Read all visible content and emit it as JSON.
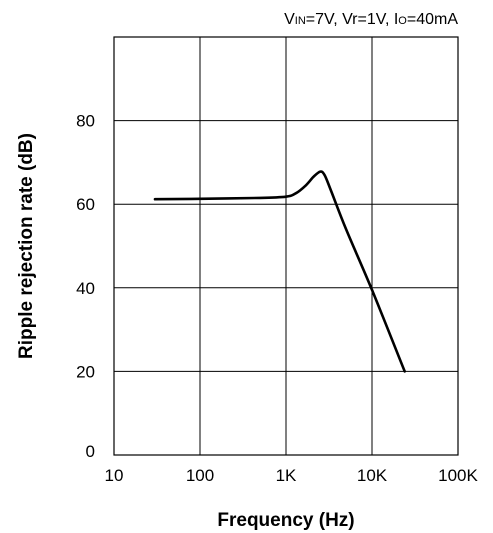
{
  "chart_data": {
    "type": "line",
    "annotation": {
      "v_label": "V",
      "v_sub": "IN",
      "v_rest": "=7V, Vr=1V, I",
      "i_sub": "O",
      "i_rest": "=40mA"
    },
    "xlabel": "Frequency (Hz)",
    "ylabel": "Ripple rejection rate (dB)",
    "x_scale": "log",
    "xlim": [
      10,
      100000
    ],
    "ylim": [
      0,
      100
    ],
    "x_ticks": [
      10,
      100,
      1000,
      10000,
      100000
    ],
    "x_tick_labels": [
      "10",
      "100",
      "1K",
      "10K",
      "100K"
    ],
    "y_ticks": [
      0,
      20,
      40,
      60,
      80
    ],
    "y_tick_labels": [
      "0",
      "20",
      "40",
      "60",
      "80"
    ],
    "grid": true,
    "series": [
      {
        "x": [
          30,
          100,
          500,
          1000,
          1300,
          1700,
          2100,
          2500,
          2800,
          3300,
          5000,
          10000,
          24000
        ],
        "y": [
          61.2,
          61.3,
          61.5,
          61.8,
          62.6,
          64.5,
          66.6,
          67.8,
          67.0,
          63.5,
          54.0,
          39.5,
          20.0
        ]
      }
    ]
  }
}
